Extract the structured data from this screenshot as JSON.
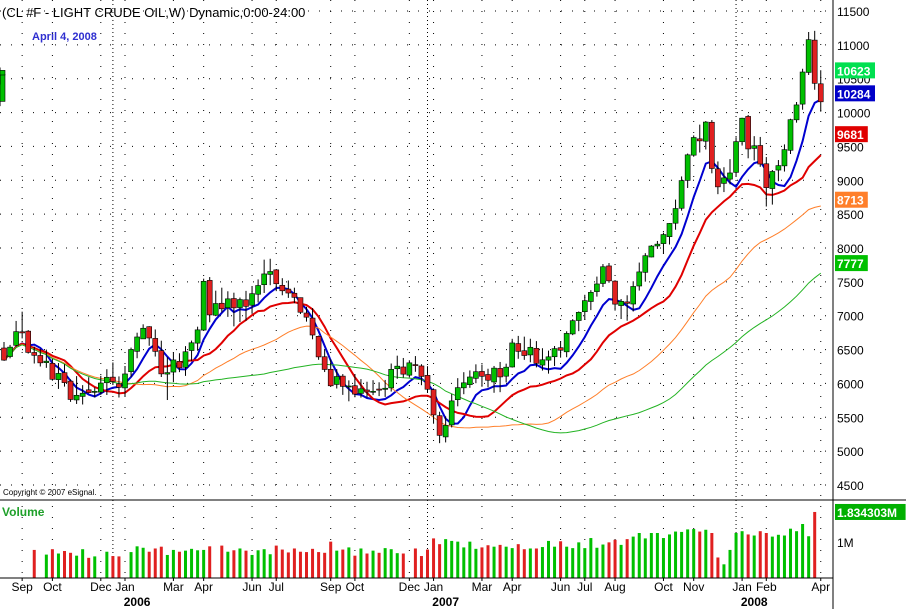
{
  "title": "(CL #F - LIGHT CRUDE OIL,W) Dynamic,0:00-24:00",
  "date_label": "April 4, 2008",
  "copyright": "Copyright © 2007 eSignal.",
  "volume_label": "Volume",
  "colors": {
    "up": "#00c000",
    "down": "#e02020",
    "ma_blue": "#0000d0",
    "ma_red": "#e00000",
    "ma_orange": "#ff7f2a",
    "ma_green": "#22b322",
    "grid": "#000000"
  },
  "price_tags": [
    {
      "text": "10623",
      "value": 10623,
      "bg": "#00e050",
      "fg": "#ffffff"
    },
    {
      "text": "10284",
      "value": 10284,
      "bg": "#0000c8",
      "fg": "#ffffff"
    },
    {
      "text": "9681",
      "value": 9681,
      "bg": "#e00000",
      "fg": "#ffffff"
    },
    {
      "text": "8713",
      "value": 8713,
      "bg": "#ff7f2a",
      "fg": "#ffffff"
    },
    {
      "text": "7777",
      "value": 7777,
      "bg": "#00c000",
      "fg": "#ffffff"
    }
  ],
  "volume_tags": [
    {
      "text": "1.834303M",
      "value": 1834303,
      "bg": "#00b000",
      "fg": "#ffffff"
    }
  ],
  "chart_data": {
    "type": "candlestick",
    "y_ticks": [
      4500,
      5000,
      5500,
      6000,
      6500,
      7000,
      7500,
      8000,
      8500,
      9000,
      9500,
      10000,
      10500,
      11000,
      11500
    ],
    "ylim": [
      4300,
      11600
    ],
    "volume_ticks": [
      {
        "label": "1M",
        "value": 1000000
      }
    ],
    "volume_ylim": [
      0,
      2000000
    ],
    "x_month_labels": [
      {
        "label": "Sep",
        "week": 3
      },
      {
        "label": "Oct",
        "week": 8
      },
      {
        "label": "Dec",
        "week": 16
      },
      {
        "label": "Jan",
        "week": 20
      },
      {
        "label": "Mar",
        "week": 28
      },
      {
        "label": "Apr",
        "week": 33
      },
      {
        "label": "Jun",
        "week": 41
      },
      {
        "label": "Jul",
        "week": 45
      },
      {
        "label": "Sep",
        "week": 54
      },
      {
        "label": "Oct",
        "week": 58
      },
      {
        "label": "Dec",
        "week": 67
      },
      {
        "label": "Jan",
        "week": 71
      },
      {
        "label": "Mar",
        "week": 79
      },
      {
        "label": "Apr",
        "week": 84
      },
      {
        "label": "Jun",
        "week": 92
      },
      {
        "label": "Jul",
        "week": 96
      },
      {
        "label": "Aug",
        "week": 101
      },
      {
        "label": "Oct",
        "week": 109
      },
      {
        "label": "Nov",
        "week": 114
      },
      {
        "label": "Jan",
        "week": 122
      },
      {
        "label": "Feb",
        "week": 126
      },
      {
        "label": "Apr",
        "week": 135
      }
    ],
    "x_year_labels": [
      {
        "label": "2006",
        "week": 22
      },
      {
        "label": "2007",
        "week": 73
      },
      {
        "label": "2008",
        "week": 124
      }
    ],
    "year_dividers": [
      18,
      70,
      121
    ],
    "ohlc_weeks": [
      0,
      1,
      2,
      3,
      4,
      5,
      6,
      7,
      8,
      9,
      10,
      11,
      12,
      13,
      14,
      15,
      16,
      17,
      18,
      19,
      20,
      21,
      22,
      23,
      24,
      25,
      26,
      27,
      28,
      29,
      30,
      31,
      32,
      33,
      34,
      35,
      36,
      37,
      38,
      39,
      40,
      41,
      42,
      43,
      44,
      45,
      46,
      47,
      48,
      49,
      50,
      51,
      52,
      53,
      54,
      55,
      56,
      57,
      58,
      59,
      60,
      61,
      62,
      63,
      64,
      65,
      66,
      67,
      68,
      69,
      70,
      71,
      72,
      73,
      74,
      75,
      76,
      77,
      78,
      79,
      80,
      81,
      82,
      83,
      84,
      85,
      86,
      87,
      88,
      89,
      90,
      91,
      92,
      93,
      94,
      95,
      96,
      97,
      98,
      99,
      100,
      101,
      102,
      103,
      104,
      105,
      106,
      107,
      108,
      109,
      110,
      111,
      112,
      113,
      114,
      115,
      116,
      117,
      118,
      119,
      120,
      121,
      122,
      123,
      124,
      125,
      126,
      127,
      128,
      129,
      130,
      131,
      132,
      133,
      134,
      135
    ],
    "ohlc": [
      [
        6523,
        6612,
        6334,
        6344
      ],
      [
        6397,
        6569,
        6371,
        6536
      ],
      [
        6563,
        6923,
        6544,
        6765
      ],
      [
        6763,
        7060,
        6665,
        6746
      ],
      [
        6772,
        6788,
        6441,
        6458
      ],
      [
        6457,
        6544,
        6294,
        6415
      ],
      [
        6413,
        6512,
        6250,
        6304
      ],
      [
        6307,
        6500,
        6230,
        6329
      ],
      [
        6297,
        6362,
        6040,
        6061
      ],
      [
        6056,
        6301,
        5919,
        6148
      ],
      [
        6159,
        6283,
        5952,
        6012
      ],
      [
        6034,
        6060,
        5728,
        5763
      ],
      [
        5756,
        6108,
        5697,
        5825
      ],
      [
        5808,
        5975,
        5689,
        5856
      ],
      [
        5906,
        6092,
        5853,
        5864
      ],
      [
        5875,
        5941,
        5793,
        5883
      ],
      [
        5870,
        6112,
        5833,
        6006
      ],
      [
        6010,
        6210,
        5829,
        6091
      ],
      [
        6093,
        6310,
        5991,
        6028
      ],
      [
        5994,
        6104,
        5792,
        5943
      ],
      [
        5934,
        6257,
        5810,
        6140
      ],
      [
        6173,
        6529,
        6095,
        6501
      ],
      [
        6474,
        6749,
        6372,
        6686
      ],
      [
        6658,
        6873,
        6661,
        6815
      ],
      [
        6838,
        6845,
        6556,
        6671
      ],
      [
        6665,
        6797,
        6397,
        6473
      ],
      [
        6485,
        6631,
        6095,
        6141
      ],
      [
        6138,
        6388,
        5755,
        6160
      ],
      [
        6168,
        6457,
        6019,
        6347
      ],
      [
        6326,
        6446,
        6167,
        6230
      ],
      [
        6238,
        6550,
        6112,
        6468
      ],
      [
        6486,
        6633,
        6333,
        6600
      ],
      [
        6595,
        6838,
        6483,
        6791
      ],
      [
        6788,
        7547,
        6787,
        7508
      ],
      [
        7522,
        7571,
        6903,
        7012
      ],
      [
        7007,
        7370,
        6993,
        7180
      ],
      [
        7184,
        7414,
        7049,
        7102
      ],
      [
        7118,
        7361,
        6983,
        7249
      ],
      [
        7254,
        7340,
        6843,
        7116
      ],
      [
        7120,
        7268,
        6906,
        7239
      ],
      [
        7235,
        7367,
        6924,
        7138
      ],
      [
        7155,
        7430,
        7029,
        7326
      ],
      [
        7317,
        7536,
        7196,
        7446
      ],
      [
        7458,
        7828,
        7336,
        7617
      ],
      [
        7610,
        7841,
        7451,
        7653
      ],
      [
        7677,
        7690,
        7363,
        7472
      ],
      [
        7449,
        7554,
        7302,
        7368
      ],
      [
        7393,
        7520,
        7263,
        7335
      ],
      [
        7332,
        7414,
        7185,
        7271
      ],
      [
        7267,
        7269,
        7025,
        7051
      ],
      [
        7040,
        7133,
        6912,
        6978
      ],
      [
        6965,
        7112,
        6652,
        6715
      ],
      [
        6696,
        6706,
        6349,
        6392
      ],
      [
        6394,
        6508,
        6168,
        6206
      ],
      [
        6209,
        6357,
        5947,
        5965
      ],
      [
        5985,
        6211,
        5925,
        6102
      ],
      [
        6108,
        6138,
        5831,
        5956
      ],
      [
        5950,
        6045,
        5736,
        5962
      ],
      [
        5966,
        6128,
        5796,
        5842
      ],
      [
        5852,
        6064,
        5791,
        5921
      ],
      [
        5903,
        6024,
        5792,
        5874
      ],
      [
        5881,
        6048,
        5827,
        5884
      ],
      [
        5917,
        6017,
        5813,
        5901
      ],
      [
        5912,
        6052,
        5801,
        5929
      ],
      [
        5934,
        6294,
        5880,
        6208
      ],
      [
        6217,
        6410,
        6069,
        6255
      ],
      [
        6243,
        6376,
        6085,
        6137
      ],
      [
        6122,
        6342,
        6088,
        6304
      ],
      [
        6278,
        6404,
        6172,
        6272
      ],
      [
        6258,
        6284,
        5974,
        6103
      ],
      [
        6119,
        6253,
        5863,
        5914
      ],
      [
        5908,
        5926,
        5405,
        5535
      ],
      [
        5524,
        5582,
        5118,
        5233
      ],
      [
        5210,
        5513,
        5129,
        5380
      ],
      [
        5387,
        5843,
        5350,
        5742
      ],
      [
        5760,
        6078,
        5662,
        5938
      ],
      [
        5935,
        6166,
        5841,
        6009
      ],
      [
        5982,
        6192,
        5935,
        6095
      ],
      [
        6075,
        6282,
        6003,
        6173
      ],
      [
        6177,
        6279,
        5951,
        6105
      ],
      [
        6132,
        6217,
        5941,
        6047
      ],
      [
        6022,
        6258,
        5862,
        6226
      ],
      [
        6222,
        6317,
        5871,
        6096
      ],
      [
        6107,
        6292,
        6016,
        6240
      ],
      [
        6243,
        6659,
        6234,
        6598
      ],
      [
        6589,
        6702,
        6364,
        6473
      ],
      [
        6483,
        6691,
        6348,
        6412
      ],
      [
        6421,
        6660,
        6312,
        6534
      ],
      [
        6518,
        6625,
        6237,
        6297
      ],
      [
        6271,
        6520,
        6190,
        6349
      ],
      [
        6344,
        6484,
        6144,
        6393
      ],
      [
        6394,
        6553,
        6258,
        6514
      ],
      [
        6528,
        6619,
        6381,
        6490
      ],
      [
        6467,
        6770,
        6387,
        6739
      ],
      [
        6731,
        6950,
        6713,
        6927
      ],
      [
        6929,
        7063,
        6772,
        7050
      ],
      [
        7059,
        7309,
        6940,
        7223
      ],
      [
        7210,
        7377,
        7083,
        7345
      ],
      [
        7356,
        7578,
        7282,
        7469
      ],
      [
        7476,
        7763,
        7424,
        7723
      ],
      [
        7735,
        7779,
        7487,
        7515
      ],
      [
        7511,
        7524,
        7075,
        7171
      ],
      [
        7150,
        7247,
        6951,
        7213
      ],
      [
        7204,
        7302,
        6926,
        7183
      ],
      [
        7173,
        7509,
        7062,
        7432
      ],
      [
        7439,
        7785,
        7371,
        7647
      ],
      [
        7641,
        7924,
        7503,
        7886
      ],
      [
        7867,
        8043,
        7862,
        8029
      ],
      [
        8030,
        8104,
        7987,
        8057
      ],
      [
        8065,
        8227,
        7918,
        8199
      ],
      [
        8167,
        8370,
        8052,
        8363
      ],
      [
        8366,
        8715,
        8270,
        8583
      ],
      [
        8587,
        9057,
        8551,
        8996
      ],
      [
        8998,
        9395,
        8886,
        9376
      ],
      [
        9371,
        9663,
        9348,
        9632
      ],
      [
        9612,
        9822,
        9410,
        9582
      ],
      [
        9577,
        9875,
        9455,
        9860
      ],
      [
        9857,
        9889,
        9103,
        9174
      ],
      [
        9169,
        9278,
        8795,
        8903
      ],
      [
        8954,
        9193,
        8826,
        9036
      ],
      [
        9017,
        9313,
        8941,
        9108
      ],
      [
        9117,
        9636,
        9054,
        9571
      ],
      [
        9569,
        9924,
        9513,
        9917
      ],
      [
        9943,
        9965,
        9325,
        9463
      ],
      [
        9471,
        9652,
        9293,
        9510
      ],
      [
        9514,
        9640,
        9199,
        9240
      ],
      [
        9244,
        9343,
        8613,
        8891
      ],
      [
        8878,
        9152,
        8641,
        9130
      ],
      [
        9151,
        9299,
        8987,
        9217
      ],
      [
        9213,
        9530,
        9129,
        9453
      ],
      [
        9443,
        9909,
        9388,
        9895
      ],
      [
        9893,
        10156,
        9851,
        10113
      ],
      [
        10125,
        10647,
        10042,
        10599
      ],
      [
        10593,
        11190,
        10555,
        11077
      ],
      [
        11070,
        11207,
        10337,
        10432
      ],
      [
        10425,
        10625,
        10013,
        10159
      ],
      [
        10165,
        10648,
        10095,
        10562
      ],
      [
        10555,
        10666,
        10415,
        10623
      ]
    ],
    "ma_colors": [
      "#0000d0",
      "#e00000",
      "#ff7f2a",
      "#22b322"
    ],
    "ma_values_last": [
      10284,
      9681,
      8713,
      7777
    ],
    "volume_weeks": [
      5,
      7,
      8,
      9,
      10,
      11,
      12,
      13,
      14,
      15,
      17,
      18,
      19,
      21,
      22,
      23,
      24,
      25,
      26,
      27,
      28,
      29,
      30,
      31,
      32,
      33,
      34,
      36,
      37,
      38,
      39,
      40,
      41,
      42,
      43,
      44,
      45,
      46,
      47,
      48,
      49,
      50,
      51,
      52,
      53,
      54,
      55,
      56,
      57,
      58,
      59,
      60,
      61,
      62,
      63,
      64,
      65,
      66,
      68,
      69,
      70,
      71,
      72,
      73,
      74,
      75,
      76,
      77,
      78,
      79,
      80,
      81,
      82,
      83,
      84,
      85,
      86,
      87,
      88,
      89,
      90,
      91,
      92,
      93,
      94,
      95,
      96,
      97,
      98,
      99,
      100,
      101,
      102,
      103,
      104,
      105,
      106,
      107,
      108,
      109,
      110,
      111,
      112,
      113,
      114,
      115,
      116,
      117,
      118,
      119,
      120,
      121,
      122,
      123,
      124,
      125,
      126,
      127,
      128,
      129,
      130,
      131,
      132,
      133,
      134,
      135
    ],
    "volume": [
      780000,
      650000,
      800000,
      680000,
      750000,
      700000,
      620000,
      800000,
      560000,
      600000,
      730000,
      610000,
      600000,
      720000,
      880000,
      840000,
      730000,
      820000,
      870000,
      640000,
      780000,
      730000,
      760000,
      810000,
      770000,
      780000,
      880000,
      900000,
      730000,
      770000,
      820000,
      760000,
      640000,
      770000,
      800000,
      660000,
      900000,
      790000,
      710000,
      820000,
      730000,
      720000,
      810000,
      720000,
      700000,
      1010000,
      760000,
      790000,
      850000,
      620000,
      820000,
      680000,
      760000,
      700000,
      830000,
      800000,
      690000,
      680000,
      820000,
      610000,
      790000,
      1100000,
      940000,
      1080000,
      1030000,
      1010000,
      850000,
      1010000,
      810000,
      850000,
      910000,
      870000,
      920000,
      870000,
      830000,
      940000,
      800000,
      820000,
      820000,
      860000,
      1030000,
      870000,
      1020000,
      870000,
      830000,
      990000,
      830000,
      1110000,
      840000,
      930000,
      990000,
      1060000,
      920000,
      1080000,
      1150000,
      1250000,
      1100000,
      1250000,
      1250000,
      1110000,
      1210000,
      1290000,
      1280000,
      1350000,
      1360000,
      1290000,
      1340000,
      1250000,
      570000,
      380000,
      780000,
      1250000,
      1300000,
      1210000,
      1180000,
      1300000,
      1250000,
      1150000,
      1200000,
      1180000,
      1370000,
      1300000,
      1500000,
      1160000,
      1834303
    ]
  }
}
